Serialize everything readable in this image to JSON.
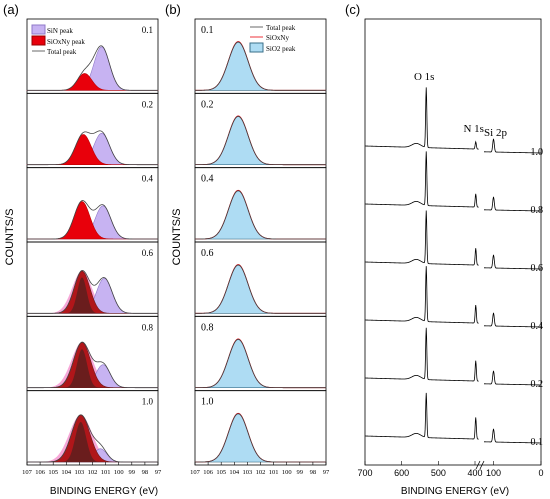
{
  "panel_labels": [
    "(a)",
    "(b)",
    "(c)"
  ],
  "colors": {
    "sin": "#c7b3f2",
    "sin_edge": "#8f78c8",
    "sioxny": "#e8000b",
    "sio2": "#aedcf3",
    "sio2_edge": "#3a6f8a",
    "total": "#444444",
    "pink": "#f7a8d8",
    "maroon": "#6a1d1d",
    "frame": "#000000"
  },
  "chart_data": [
    {
      "type": "area",
      "panel": "(a)",
      "ylabel": "COUNTS/S",
      "xlabel": "BINDING ENERGY (eV)",
      "x_ticks": [
        "107",
        "106",
        "105",
        "104",
        "103",
        "102",
        "101",
        "100",
        "99",
        "98",
        "97"
      ],
      "xlim": [
        107,
        97
      ],
      "legend": {
        "sin": "SiN peak",
        "sioxny": "SiOxNy peak",
        "total": "Total peak"
      },
      "series": [
        {
          "label": "0.1",
          "sioxny": {
            "center": 102.6,
            "height": 0.28,
            "sigma": 0.55
          },
          "sin": {
            "center": 101.3,
            "height": 0.72,
            "sigma": 0.6
          },
          "pink": 0
        },
        {
          "label": "0.2",
          "sioxny": {
            "center": 102.7,
            "height": 0.5,
            "sigma": 0.6
          },
          "sin": {
            "center": 101.3,
            "height": 0.52,
            "sigma": 0.6
          },
          "pink": 0
        },
        {
          "label": "0.4",
          "sioxny": {
            "center": 102.8,
            "height": 0.62,
            "sigma": 0.6
          },
          "sin": {
            "center": 101.2,
            "height": 0.55,
            "sigma": 0.6
          },
          "pink": 0
        },
        {
          "label": "0.6",
          "sioxny": {
            "center": 102.8,
            "height": 0.7,
            "sigma": 0.6
          },
          "sin": {
            "center": 101.1,
            "height": 0.58,
            "sigma": 0.6
          },
          "pink": 1
        },
        {
          "label": "0.8",
          "sioxny": {
            "center": 102.8,
            "height": 0.75,
            "sigma": 0.65
          },
          "sin": {
            "center": 101.2,
            "height": 0.38,
            "sigma": 0.55
          },
          "pink": 1
        },
        {
          "label": "1.0",
          "sioxny": {
            "center": 102.9,
            "height": 0.78,
            "sigma": 0.7
          },
          "sin": {
            "center": 101.4,
            "height": 0.22,
            "sigma": 0.5
          },
          "pink": 1
        }
      ]
    },
    {
      "type": "area",
      "panel": "(b)",
      "ylabel": "COUNTS/S",
      "xlabel": "BINDING ENERGY (eV)",
      "x_ticks": [
        "107",
        "106",
        "105",
        "104",
        "103",
        "102",
        "101",
        "100",
        "99",
        "98",
        "97"
      ],
      "xlim": [
        107,
        97
      ],
      "legend": {
        "total": "Total peak",
        "sioxny": "SiOxNy",
        "sio2": "SiO2 peak"
      },
      "series": [
        {
          "label": "0.1",
          "sio2": {
            "center": 103.7,
            "height": 0.8,
            "sigma": 0.75
          }
        },
        {
          "label": "0.2",
          "sio2": {
            "center": 103.7,
            "height": 0.8,
            "sigma": 0.75
          }
        },
        {
          "label": "0.4",
          "sio2": {
            "center": 103.7,
            "height": 0.8,
            "sigma": 0.75
          }
        },
        {
          "label": "0.6",
          "sio2": {
            "center": 103.7,
            "height": 0.8,
            "sigma": 0.75
          }
        },
        {
          "label": "0.8",
          "sio2": {
            "center": 103.7,
            "height": 0.8,
            "sigma": 0.75
          }
        },
        {
          "label": "1.0",
          "sio2": {
            "center": 103.7,
            "height": 0.8,
            "sigma": 0.75
          }
        }
      ]
    },
    {
      "type": "line",
      "panel": "(c)",
      "xlabel": "BINDING ENERGY (eV)",
      "x_ticks": [
        "700",
        "600",
        "500",
        "400",
        "100",
        "0"
      ],
      "peak_labels": [
        "O 1s",
        "N 1s",
        "Si 2p"
      ],
      "peaks_ev": [
        533,
        398,
        100
      ],
      "xlim": [
        700,
        0
      ],
      "series": [
        {
          "label": "1.0",
          "o1s": 1.0,
          "n1s": 0.12,
          "si2p": 0.22
        },
        {
          "label": "0.8",
          "o1s": 0.9,
          "n1s": 0.22,
          "si2p": 0.22
        },
        {
          "label": "0.6",
          "o1s": 0.88,
          "n1s": 0.28,
          "si2p": 0.22
        },
        {
          "label": "0.4",
          "o1s": 0.92,
          "n1s": 0.3,
          "si2p": 0.22
        },
        {
          "label": "0.2",
          "o1s": 0.86,
          "n1s": 0.34,
          "si2p": 0.22
        },
        {
          "label": "0.1",
          "o1s": 0.74,
          "n1s": 0.36,
          "si2p": 0.22
        }
      ]
    }
  ]
}
